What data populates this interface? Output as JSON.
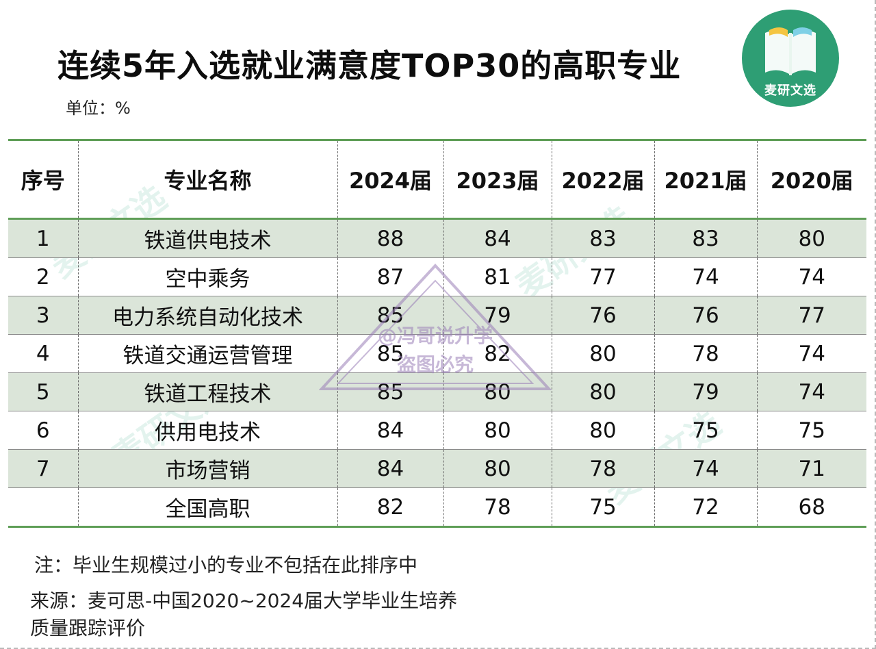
{
  "title": "连续5年入选就业满意度TOP30的高职专业",
  "unit": "单位：%",
  "logo": {
    "text": "麦研文选",
    "color": "#2e9e74"
  },
  "watermark": {
    "text": "麦研文选",
    "stamp_line1": "@冯哥说升学",
    "stamp_line2": "盗图必究"
  },
  "table": {
    "headers": [
      "序号",
      "专业名称",
      "2024届",
      "2023届",
      "2022届",
      "2021届",
      "2020届"
    ],
    "rows": [
      [
        "1",
        "铁道供电技术",
        "88",
        "84",
        "83",
        "83",
        "80"
      ],
      [
        "2",
        "空中乘务",
        "87",
        "81",
        "77",
        "74",
        "74"
      ],
      [
        "3",
        "电力系统自动化技术",
        "85",
        "79",
        "76",
        "76",
        "77"
      ],
      [
        "4",
        "铁道交通运营管理",
        "85",
        "82",
        "80",
        "78",
        "74"
      ],
      [
        "5",
        "铁道工程技术",
        "85",
        "80",
        "80",
        "79",
        "74"
      ],
      [
        "6",
        "供用电技术",
        "84",
        "80",
        "80",
        "75",
        "75"
      ],
      [
        "7",
        "市场营销",
        "84",
        "80",
        "78",
        "74",
        "71"
      ],
      [
        "",
        "全国高职",
        "82",
        "78",
        "75",
        "72",
        "68"
      ]
    ],
    "shade_color": "#dbe5d9",
    "rule_color": "#5f9e57"
  },
  "note": "注：毕业生规模过小的专业不包括在此排序中",
  "source": "来源：麦可思-中国2020~2024届大学毕业生培养质量跟踪评价"
}
